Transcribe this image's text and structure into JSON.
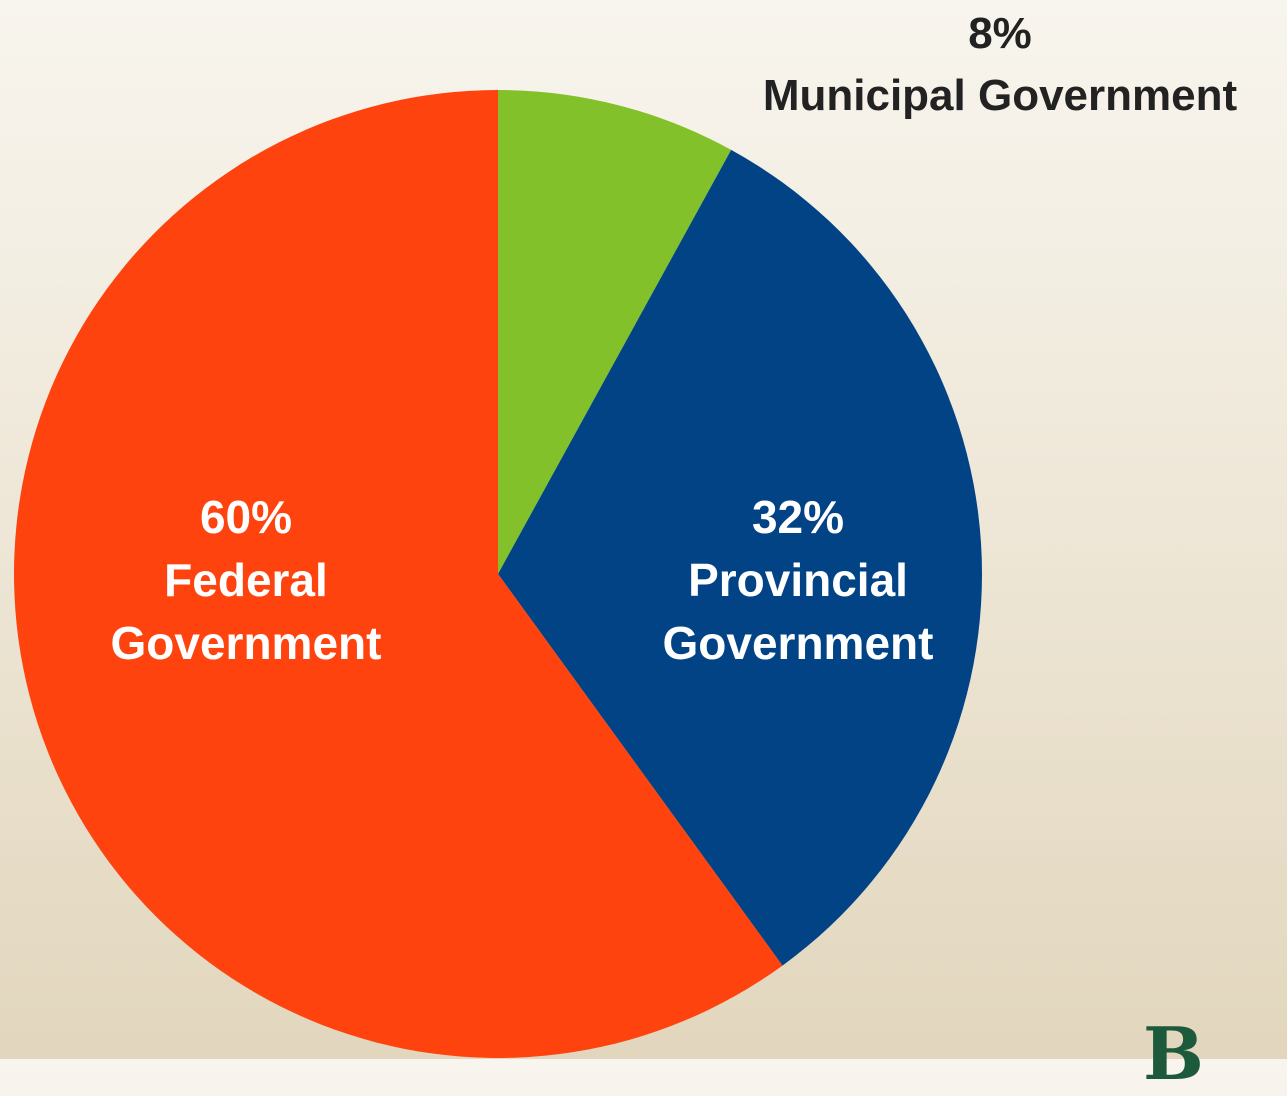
{
  "chart_data": {
    "type": "pie",
    "start_angle_deg": 0,
    "direction": "clockwise",
    "slices": [
      {
        "name": "Municipal Government",
        "value": 8,
        "label_pct": "8%",
        "label_lines": [
          "Municipal Government"
        ],
        "color": "#82c12a",
        "label_color": "#222222",
        "label_placement": "outside"
      },
      {
        "name": "Provincial Government",
        "value": 32,
        "label_pct": "32%",
        "label_lines": [
          "Provincial",
          "Government"
        ],
        "color": "#014385",
        "label_color": "#ffffff",
        "label_placement": "inside"
      },
      {
        "name": "Federal Government",
        "value": 60,
        "label_pct": "60%",
        "label_lines": [
          "Federal",
          "Government"
        ],
        "color": "#fe430f",
        "label_color": "#ffffff",
        "label_placement": "inside"
      }
    ]
  },
  "corner_mark": "B"
}
